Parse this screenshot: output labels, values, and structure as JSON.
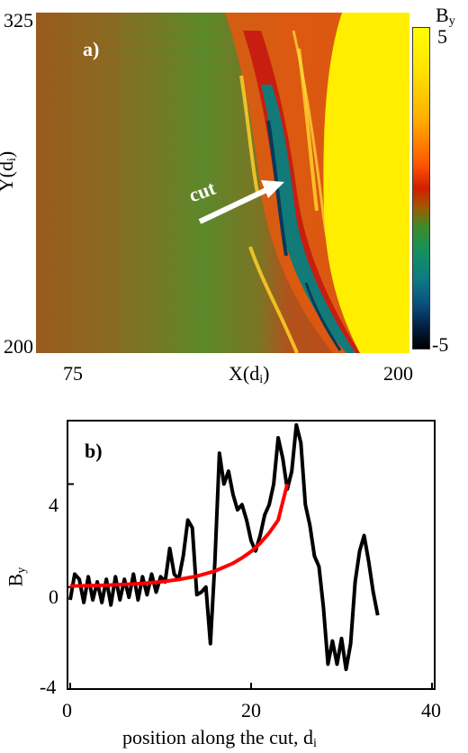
{
  "chart_data": [
    {
      "type": "heatmap",
      "panel_label": "a)",
      "xlabel_text": "X(d",
      "xlabel_sub": "i",
      "xlabel_close": ")",
      "ylabel_text": "Y(d",
      "ylabel_sub": "i",
      "ylabel_close": ")",
      "x_ticks": [
        "75",
        "200"
      ],
      "y_ticks": [
        "325",
        "200"
      ],
      "xlim": [
        75,
        200
      ],
      "ylim": [
        200,
        325
      ],
      "colorbar": {
        "label_text": "B",
        "label_sub": "y",
        "ticks": [
          "5",
          "-5"
        ],
        "range": [
          -5,
          5
        ],
        "colors": [
          "#000000",
          "#0a5080",
          "#139060",
          "#3c8c28",
          "#a05a00",
          "#d21e00",
          "#ff5a00",
          "#ffb000",
          "#ffff00"
        ]
      },
      "annotation": "cut"
    },
    {
      "type": "line",
      "panel_label": "b)",
      "xlabel_text": "position along the cut, d",
      "xlabel_sub": "i",
      "ylabel_text": "B",
      "ylabel_sub": "y",
      "xlim": [
        0,
        40
      ],
      "ylim": [
        -4,
        6.5
      ],
      "x_ticks": [
        "0",
        "20",
        "40"
      ],
      "y_ticks": [
        "4",
        "0",
        "-4"
      ],
      "series": [
        {
          "color": "#000000",
          "x": [
            0,
            0.5,
            1,
            1.5,
            2,
            2.5,
            3,
            3.5,
            4,
            4.5,
            5,
            5.5,
            6,
            6.5,
            7,
            7.5,
            8,
            8.5,
            9,
            9.5,
            10,
            10.5,
            11,
            11.5,
            12,
            12.5,
            13,
            13.5,
            14,
            14.5,
            15,
            15.5,
            16,
            16.5,
            17,
            17.5,
            18,
            18.5,
            19,
            19.5,
            20,
            20.5,
            21,
            21.5,
            22,
            22.5,
            23,
            23.5,
            24,
            24.5,
            25,
            25.5,
            26,
            26.5,
            27,
            27.5,
            28,
            28.5,
            29,
            29.5,
            30,
            30.5,
            31,
            31.5,
            32,
            32.5,
            33,
            33.5,
            34
          ],
          "y": [
            -0.5,
            0.5,
            0.3,
            -0.6,
            0.4,
            -0.5,
            0.2,
            -0.6,
            0.3,
            -0.7,
            0.4,
            -0.5,
            0.3,
            -0.4,
            0.5,
            -0.5,
            0.4,
            -0.3,
            0.5,
            -0.2,
            0.4,
            0.2,
            1.5,
            0.5,
            0.3,
            1.2,
            2.6,
            2.3,
            -0.3,
            -0.2,
            0.0,
            -2.2,
            1.0,
            5.2,
            4.0,
            4.5,
            3.6,
            3.0,
            3.2,
            2.6,
            1.8,
            1.4,
            2.0,
            2.8,
            3.2,
            4.0,
            5.8,
            5.0,
            3.8,
            4.5,
            6.3,
            5.6,
            3.2,
            2.4,
            1.2,
            0.8,
            -0.8,
            -3.0,
            -2.1,
            -3.0,
            -2.0,
            -3.2,
            -2.2,
            0.2,
            1.4,
            2.0,
            1.0,
            -0.2,
            -1.1
          ]
        },
        {
          "color": "#ff0000",
          "x": [
            0,
            2,
            4,
            6,
            8,
            10,
            12,
            14,
            16,
            18,
            19,
            20,
            21,
            22,
            23,
            24
          ],
          "y": [
            0.04,
            0.05,
            0.07,
            0.1,
            0.14,
            0.2,
            0.29,
            0.42,
            0.62,
            0.92,
            1.13,
            1.38,
            1.7,
            2.1,
            2.6,
            4.0
          ]
        }
      ]
    }
  ]
}
